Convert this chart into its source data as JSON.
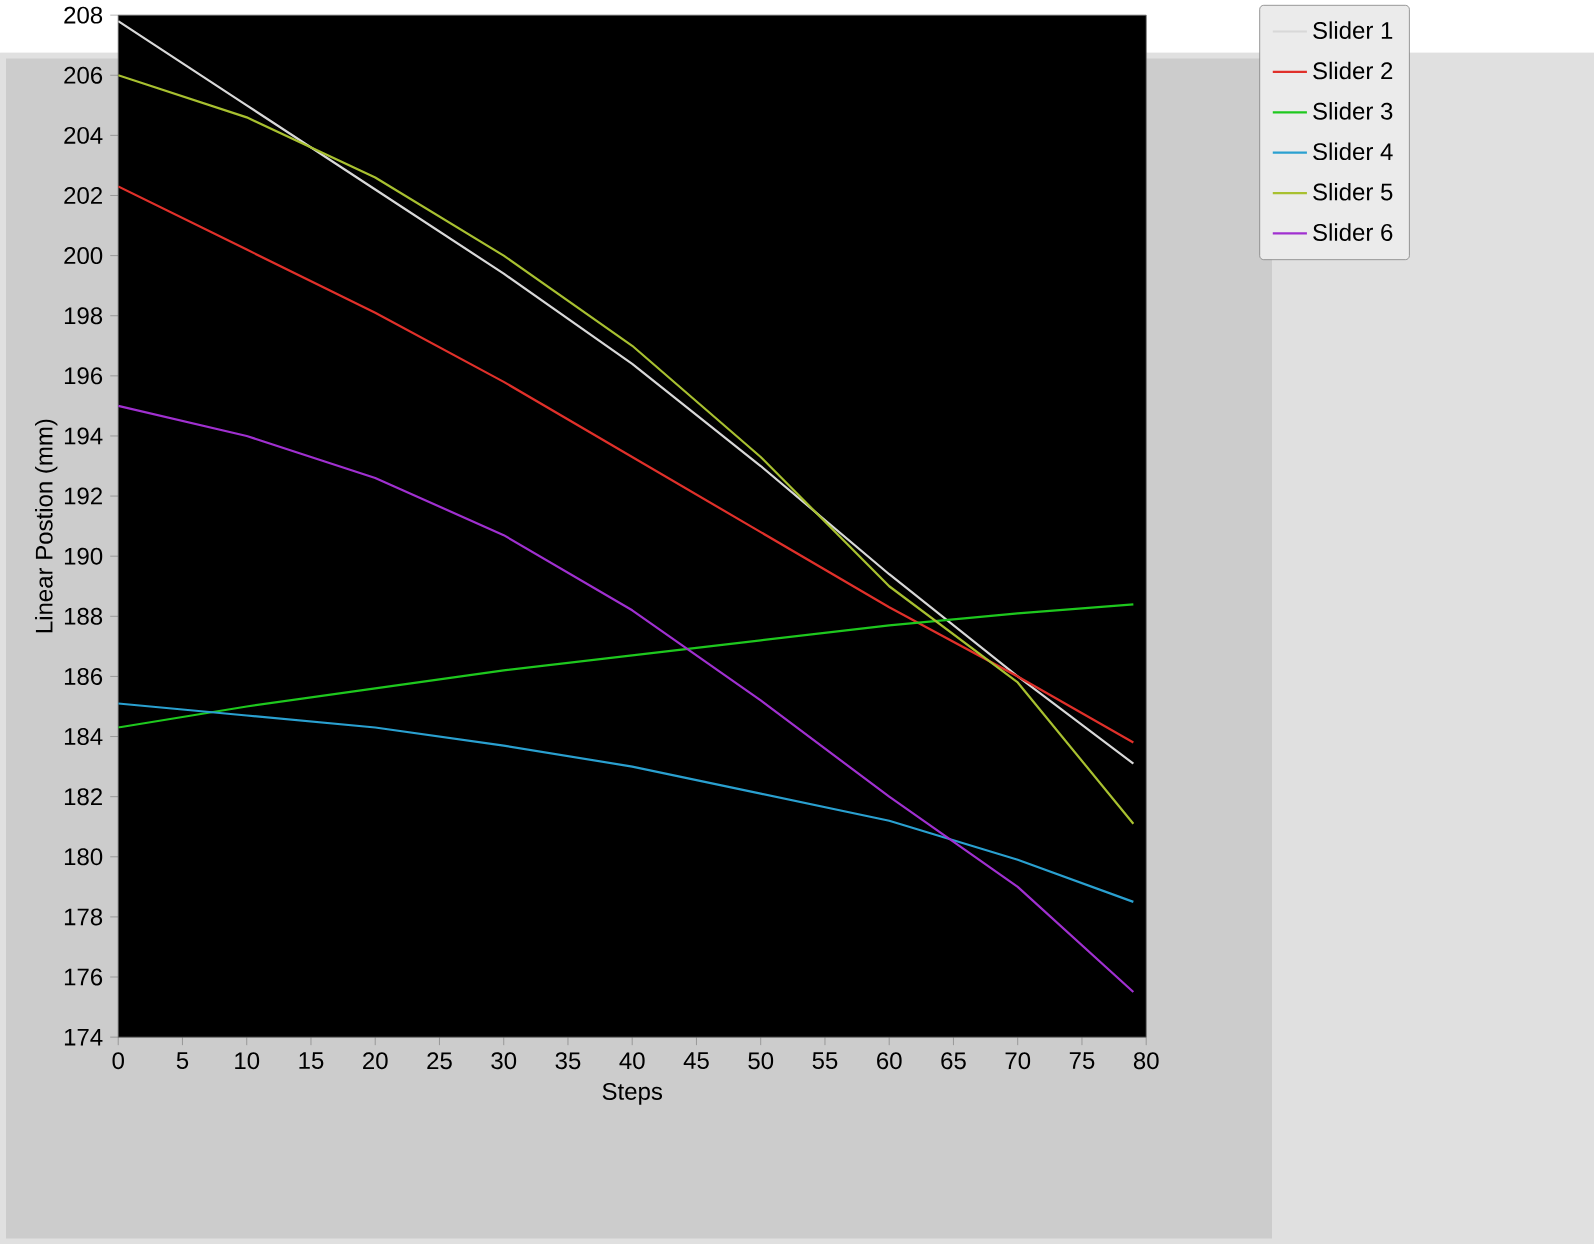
{
  "chart_data": {
    "type": "line",
    "xlabel": "Steps",
    "ylabel": "Linear Postion (mm)",
    "x": [
      0,
      10,
      20,
      30,
      40,
      50,
      60,
      70,
      79
    ],
    "series": [
      {
        "name": "Slider 1",
        "color": "#d8d8d8",
        "values": [
          207.8,
          205,
          202.2,
          199.4,
          196.4,
          193,
          189.4,
          186,
          183.1
        ]
      },
      {
        "name": "Slider 2",
        "color": "#e0302a",
        "values": [
          202.3,
          200.2,
          198.1,
          195.8,
          193.3,
          190.8,
          188.3,
          186,
          183.8
        ]
      },
      {
        "name": "Slider 3",
        "color": "#1ec81e",
        "values": [
          184.3,
          185,
          185.6,
          186.2,
          186.7,
          187.2,
          187.7,
          188.1,
          188.4
        ]
      },
      {
        "name": "Slider 4",
        "color": "#2aa0d0",
        "values": [
          185.1,
          184.7,
          184.3,
          183.7,
          183,
          182.1,
          181.2,
          179.9,
          178.5
        ]
      },
      {
        "name": "Slider 5",
        "color": "#a8c030",
        "values": [
          206,
          204.6,
          202.6,
          200,
          197,
          193.3,
          189,
          185.8,
          181.1
        ]
      },
      {
        "name": "Slider 6",
        "color": "#a030d0",
        "values": [
          195,
          194,
          192.6,
          190.7,
          188.2,
          185.2,
          182,
          179,
          175.5
        ]
      }
    ],
    "xlim": [
      0,
      80
    ],
    "xticks": [
      0,
      5,
      10,
      15,
      20,
      25,
      30,
      35,
      40,
      45,
      50,
      55,
      60,
      65,
      70,
      75,
      80
    ],
    "ylim": [
      174,
      208
    ],
    "yticks": [
      174,
      176,
      178,
      180,
      182,
      184,
      186,
      188,
      190,
      192,
      194,
      196,
      198,
      200,
      202,
      204,
      206,
      208
    ],
    "grid": false,
    "legend": "top right",
    "line_style": "solid"
  }
}
